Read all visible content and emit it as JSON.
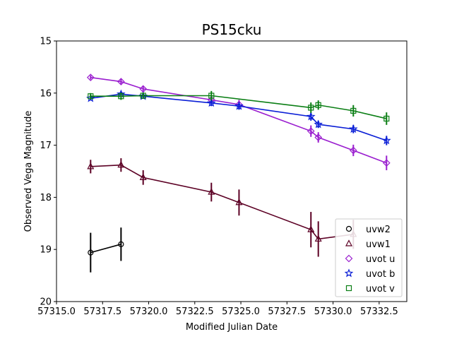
{
  "chart_data": {
    "type": "line",
    "title": "PS15cku",
    "xlabel": "Modified Julian Date",
    "ylabel": "Observed Vega Magnitude",
    "xlim": [
      57315.0,
      57334.0
    ],
    "ylim": [
      15.0,
      20.0
    ],
    "y_inverted": true,
    "xticks": [
      57315.0,
      57317.5,
      57320.0,
      57322.5,
      57325.0,
      57327.5,
      57330.0,
      57332.5
    ],
    "xtick_labels": [
      "57315.0",
      "57317.5",
      "57320.0",
      "57322.5",
      "57325.0",
      "57327.5",
      "57330.0",
      "57332.5"
    ],
    "yticks": [
      15,
      16,
      17,
      18,
      19,
      20
    ],
    "ytick_labels": [
      "15",
      "16",
      "17",
      "18",
      "19",
      "20"
    ],
    "grid": false,
    "legend_position": "bottom-right",
    "series": [
      {
        "name": "uvw2",
        "marker": "circle",
        "color": "#000000",
        "x": [
          57316.85,
          57318.5
        ],
        "y": [
          19.06,
          18.9
        ],
        "err": [
          0.38,
          0.32
        ]
      },
      {
        "name": "uvw1",
        "marker": "triangle",
        "color": "#5c0024",
        "x": [
          57316.85,
          57318.5,
          57319.7,
          57323.4,
          57324.9,
          57328.8,
          57329.2,
          57331.1
        ],
        "y": [
          17.41,
          17.38,
          17.62,
          17.9,
          18.1,
          18.62,
          18.8,
          18.71
        ],
        "err": [
          0.13,
          0.13,
          0.14,
          0.18,
          0.25,
          0.34,
          0.34,
          0.28
        ]
      },
      {
        "name": "uvot u",
        "marker": "diamond",
        "color": "#9a1ecf",
        "x": [
          57316.85,
          57318.5,
          57319.7,
          57323.4,
          57324.9,
          57328.8,
          57329.2,
          57331.1,
          57332.9
        ],
        "y": [
          15.7,
          15.78,
          15.92,
          16.13,
          16.22,
          16.73,
          16.85,
          17.1,
          17.34
        ],
        "err": [
          0.04,
          0.05,
          0.06,
          0.07,
          0.09,
          0.11,
          0.1,
          0.11,
          0.14
        ]
      },
      {
        "name": "uvot b",
        "marker": "star",
        "color": "#0a1ed6",
        "x": [
          57316.85,
          57318.5,
          57319.7,
          57323.4,
          57324.9,
          57328.8,
          57329.2,
          57331.1,
          57332.9
        ],
        "y": [
          16.1,
          16.02,
          16.06,
          16.19,
          16.25,
          16.45,
          16.6,
          16.69,
          16.91
        ],
        "err": [
          0.04,
          0.05,
          0.05,
          0.06,
          0.07,
          0.08,
          0.07,
          0.08,
          0.09
        ]
      },
      {
        "name": "uvot v",
        "marker": "square",
        "color": "#0a7e14",
        "x": [
          57316.85,
          57318.5,
          57319.7,
          57323.4,
          57328.8,
          57329.2,
          57331.1,
          57332.9
        ],
        "y": [
          16.06,
          16.06,
          16.05,
          16.05,
          16.28,
          16.23,
          16.34,
          16.49
        ],
        "err": [
          0.06,
          0.07,
          0.06,
          0.09,
          0.1,
          0.09,
          0.11,
          0.12
        ]
      }
    ]
  }
}
